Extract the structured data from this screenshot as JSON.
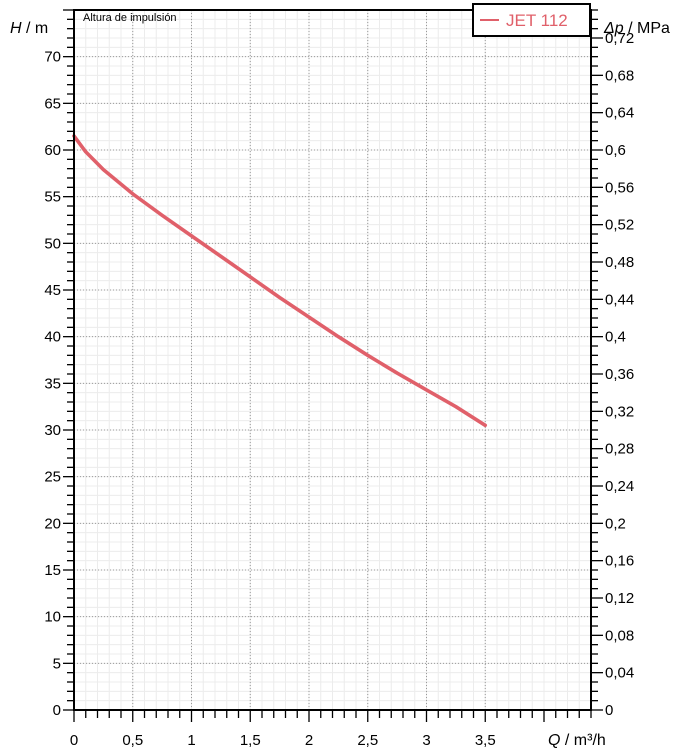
{
  "chart_data": {
    "type": "line",
    "title": "Altura de impulsión",
    "ylabel_left": {
      "symbol": "H",
      "unit": "m"
    },
    "ylabel_right": {
      "symbol": "Δp",
      "unit": "MPa"
    },
    "xlabel": {
      "symbol": "Q",
      "unit": "m³/h"
    },
    "xlim": [
      0,
      4.4
    ],
    "ylim": [
      0,
      75
    ],
    "ylim_right": [
      0,
      0.75
    ],
    "x_ticks": [
      "0",
      "0,5",
      "1",
      "1,5",
      "2",
      "2,5",
      "3",
      "3,5"
    ],
    "y_ticks_left": [
      "0",
      "5",
      "10",
      "15",
      "20",
      "25",
      "30",
      "35",
      "40",
      "45",
      "50",
      "55",
      "60",
      "65",
      "70"
    ],
    "y_ticks_right": [
      "0",
      "0,04",
      "0,08",
      "0,12",
      "0,16",
      "0,2",
      "0,24",
      "0,28",
      "0,32",
      "0,36",
      "0,4",
      "0,44",
      "0,48",
      "0,52",
      "0,56",
      "0,6",
      "0,64",
      "0,68",
      "0,72"
    ],
    "grid": true,
    "legend": {
      "position": "top-right",
      "entries": [
        "JET 112"
      ]
    },
    "series": [
      {
        "name": "JET 112",
        "color": "#e0606a",
        "x": [
          0,
          0.1,
          0.25,
          0.5,
          0.75,
          1.0,
          1.25,
          1.5,
          1.75,
          2.0,
          2.25,
          2.5,
          2.75,
          3.0,
          3.25,
          3.5
        ],
        "y": [
          61.5,
          59.8,
          57.9,
          55.3,
          53.0,
          50.8,
          48.6,
          46.4,
          44.2,
          42.1,
          40.0,
          38.0,
          36.1,
          34.3,
          32.5,
          30.5
        ]
      }
    ]
  }
}
